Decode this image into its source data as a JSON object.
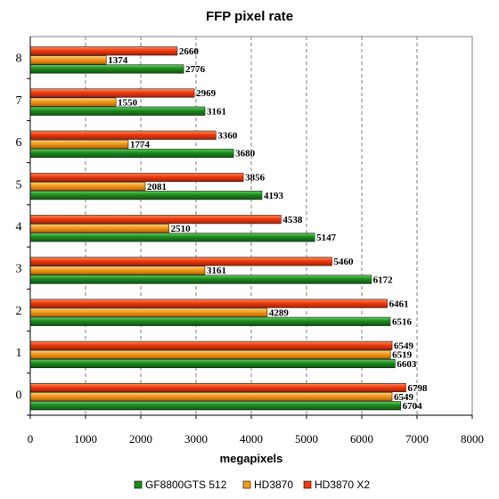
{
  "chart_data": {
    "type": "bar",
    "orientation": "horizontal",
    "title": "FFP pixel rate",
    "xlabel": "megapixels",
    "ylabel": "",
    "categories": [
      "0",
      "1",
      "2",
      "3",
      "4",
      "5",
      "6",
      "7",
      "8"
    ],
    "xlim": [
      0,
      8000
    ],
    "xticks": [
      "0",
      "1000",
      "2000",
      "3000",
      "4000",
      "5000",
      "6000",
      "7000",
      "8000"
    ],
    "grid": "vertical dashed",
    "legend_position": "bottom",
    "series": [
      {
        "name": "GF8800GTS 512",
        "color": "#1f8a1f",
        "values": [
          6704,
          6603,
          6516,
          6172,
          5147,
          4193,
          3680,
          3161,
          2776
        ]
      },
      {
        "name": "HD3870",
        "color": "#f39a1e",
        "values": [
          6549,
          6519,
          4289,
          3161,
          2510,
          2081,
          1774,
          1550,
          1374
        ]
      },
      {
        "name": "HD3870 X2",
        "color": "#ee3b10",
        "values": [
          6798,
          6549,
          6461,
          5460,
          4538,
          3856,
          3360,
          2969,
          2660
        ]
      }
    ]
  }
}
